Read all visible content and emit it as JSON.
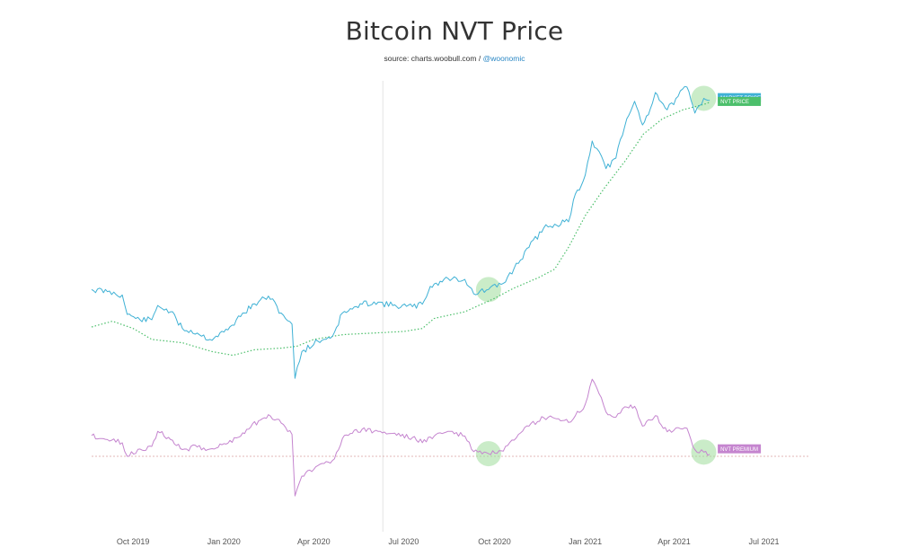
{
  "title": "Bitcoin NVT Price",
  "subtitle": {
    "source_text": "source: charts.woobull.com /",
    "handle": "@woonomic"
  },
  "colors": {
    "market": "#3fb1d5",
    "nvt": "#4cbf6b",
    "premium": "#c585cf",
    "highlight": "#9fdc9a",
    "baseline": "#d8a0a0"
  },
  "chart_data": {
    "type": "line",
    "title": "Bitcoin NVT Price",
    "xlabel": "",
    "ylabel": "",
    "x_ticks": [
      "Oct 2019",
      "Jan 2020",
      "Apr 2020",
      "Jul 2020",
      "Oct 2020",
      "Jan 2021",
      "Apr 2021",
      "Jul 2021"
    ],
    "x_range": [
      "2019-08-20",
      "2021-08-15"
    ],
    "grid": false,
    "legend": "right",
    "y_axis_labels": false,
    "vertical_marker": "2020-06-10",
    "series": [
      {
        "name": "MARKET PRICE",
        "style": "solid",
        "points": [
          [
            "2019-08-20",
            10700
          ],
          [
            "2019-09-05",
            10500
          ],
          [
            "2019-09-20",
            10200
          ],
          [
            "2019-09-25",
            8600
          ],
          [
            "2019-10-08",
            8200
          ],
          [
            "2019-10-20",
            8200
          ],
          [
            "2019-10-26",
            9300
          ],
          [
            "2019-11-08",
            8800
          ],
          [
            "2019-11-20",
            7600
          ],
          [
            "2019-12-05",
            7300
          ],
          [
            "2019-12-18",
            6900
          ],
          [
            "2020-01-05",
            7500
          ],
          [
            "2020-01-20",
            8700
          ],
          [
            "2020-02-05",
            9600
          ],
          [
            "2020-02-15",
            10100
          ],
          [
            "2020-02-28",
            8700
          ],
          [
            "2020-03-10",
            7900
          ],
          [
            "2020-03-13",
            4900
          ],
          [
            "2020-03-20",
            6200
          ],
          [
            "2020-04-05",
            6800
          ],
          [
            "2020-04-20",
            7100
          ],
          [
            "2020-04-30",
            8700
          ],
          [
            "2020-05-10",
            9000
          ],
          [
            "2020-05-20",
            9400
          ],
          [
            "2020-06-01",
            9600
          ],
          [
            "2020-06-20",
            9300
          ],
          [
            "2020-07-10",
            9200
          ],
          [
            "2020-07-20",
            9400
          ],
          [
            "2020-07-28",
            11000
          ],
          [
            "2020-08-15",
            11800
          ],
          [
            "2020-09-01",
            11700
          ],
          [
            "2020-09-10",
            10300
          ],
          [
            "2020-09-25",
            10700
          ],
          [
            "2020-10-10",
            11300
          ],
          [
            "2020-10-21",
            12900
          ],
          [
            "2020-11-05",
            15500
          ],
          [
            "2020-11-20",
            18400
          ],
          [
            "2020-12-01",
            19000
          ],
          [
            "2020-12-15",
            19400
          ],
          [
            "2020-12-20",
            23500
          ],
          [
            "2021-01-01",
            29300
          ],
          [
            "2021-01-08",
            39500
          ],
          [
            "2021-01-15",
            36000
          ],
          [
            "2021-01-22",
            31000
          ],
          [
            "2021-02-01",
            34000
          ],
          [
            "2021-02-10",
            45000
          ],
          [
            "2021-02-20",
            56000
          ],
          [
            "2021-02-28",
            45500
          ],
          [
            "2021-03-10",
            55000
          ],
          [
            "2021-03-13",
            60500
          ],
          [
            "2021-03-25",
            52000
          ],
          [
            "2021-04-05",
            58500
          ],
          [
            "2021-04-14",
            63500
          ],
          [
            "2021-04-22",
            50500
          ],
          [
            "2021-05-01",
            57500
          ],
          [
            "2021-05-07",
            56500
          ]
        ]
      },
      {
        "name": "NVT PRICE",
        "style": "dotted",
        "points": [
          [
            "2019-08-20",
            7700
          ],
          [
            "2019-09-10",
            8100
          ],
          [
            "2019-10-01",
            7600
          ],
          [
            "2019-10-20",
            6900
          ],
          [
            "2019-11-20",
            6700
          ],
          [
            "2019-12-20",
            6200
          ],
          [
            "2020-01-10",
            6000
          ],
          [
            "2020-02-01",
            6300
          ],
          [
            "2020-03-01",
            6400
          ],
          [
            "2020-03-15",
            6500
          ],
          [
            "2020-04-01",
            6900
          ],
          [
            "2020-05-01",
            7200
          ],
          [
            "2020-06-01",
            7300
          ],
          [
            "2020-07-01",
            7400
          ],
          [
            "2020-07-20",
            7600
          ],
          [
            "2020-08-01",
            8300
          ],
          [
            "2020-09-01",
            8800
          ],
          [
            "2020-10-01",
            9900
          ],
          [
            "2020-10-20",
            10800
          ],
          [
            "2020-11-15",
            11900
          ],
          [
            "2020-12-01",
            12800
          ],
          [
            "2020-12-15",
            15500
          ],
          [
            "2021-01-01",
            20500
          ],
          [
            "2021-01-20",
            26000
          ],
          [
            "2021-02-10",
            33000
          ],
          [
            "2021-03-01",
            42000
          ],
          [
            "2021-03-20",
            48000
          ],
          [
            "2021-04-10",
            52000
          ],
          [
            "2021-05-01",
            54500
          ],
          [
            "2021-05-07",
            55500
          ]
        ]
      },
      {
        "name": "NVT PREMIUM",
        "style": "solid",
        "points": [
          [
            "2019-08-20",
            0.4
          ],
          [
            "2019-09-05",
            0.32
          ],
          [
            "2019-09-20",
            0.26
          ],
          [
            "2019-09-25",
            0.0
          ],
          [
            "2019-10-08",
            0.14
          ],
          [
            "2019-10-20",
            0.19
          ],
          [
            "2019-10-26",
            0.48
          ],
          [
            "2019-11-08",
            0.32
          ],
          [
            "2019-11-20",
            0.13
          ],
          [
            "2019-12-05",
            0.18
          ],
          [
            "2019-12-18",
            0.14
          ],
          [
            "2020-01-05",
            0.25
          ],
          [
            "2020-01-20",
            0.45
          ],
          [
            "2020-02-05",
            0.68
          ],
          [
            "2020-02-15",
            0.8
          ],
          [
            "2020-02-28",
            0.64
          ],
          [
            "2020-03-10",
            0.42
          ],
          [
            "2020-03-13",
            -0.76
          ],
          [
            "2020-03-20",
            -0.38
          ],
          [
            "2020-04-05",
            -0.18
          ],
          [
            "2020-04-20",
            -0.08
          ],
          [
            "2020-04-30",
            0.34
          ],
          [
            "2020-05-10",
            0.44
          ],
          [
            "2020-05-20",
            0.52
          ],
          [
            "2020-06-01",
            0.48
          ],
          [
            "2020-06-20",
            0.44
          ],
          [
            "2020-07-10",
            0.36
          ],
          [
            "2020-07-20",
            0.26
          ],
          [
            "2020-07-28",
            0.37
          ],
          [
            "2020-08-15",
            0.48
          ],
          [
            "2020-09-01",
            0.39
          ],
          [
            "2020-09-10",
            0.09
          ],
          [
            "2020-09-25",
            0.05
          ],
          [
            "2020-10-10",
            0.1
          ],
          [
            "2020-10-21",
            0.31
          ],
          [
            "2020-11-05",
            0.58
          ],
          [
            "2020-11-20",
            0.74
          ],
          [
            "2020-12-01",
            0.73
          ],
          [
            "2020-12-15",
            0.65
          ],
          [
            "2020-12-20",
            0.72
          ],
          [
            "2021-01-01",
            1.0
          ],
          [
            "2021-01-08",
            1.48
          ],
          [
            "2021-01-15",
            1.2
          ],
          [
            "2021-01-22",
            0.85
          ],
          [
            "2021-02-01",
            0.75
          ],
          [
            "2021-02-10",
            0.95
          ],
          [
            "2021-02-20",
            0.96
          ],
          [
            "2021-02-28",
            0.58
          ],
          [
            "2021-03-10",
            0.7
          ],
          [
            "2021-03-13",
            0.78
          ],
          [
            "2021-03-25",
            0.47
          ],
          [
            "2021-04-05",
            0.55
          ],
          [
            "2021-04-14",
            0.54
          ],
          [
            "2021-04-22",
            0.13
          ],
          [
            "2021-05-01",
            0.08
          ],
          [
            "2021-05-07",
            0.04
          ]
        ]
      }
    ],
    "annotations": [
      {
        "type": "highlight-circle",
        "series": "MARKET PRICE",
        "x": "2020-09-25",
        "y": 10700
      },
      {
        "type": "highlight-circle",
        "series": "MARKET PRICE",
        "x": "2021-05-01",
        "y": 57500
      },
      {
        "type": "highlight-circle",
        "series": "NVT PREMIUM",
        "x": "2020-09-25",
        "y": 0.05
      },
      {
        "type": "highlight-circle",
        "series": "NVT PREMIUM",
        "x": "2021-05-01",
        "y": 0.08
      }
    ]
  }
}
